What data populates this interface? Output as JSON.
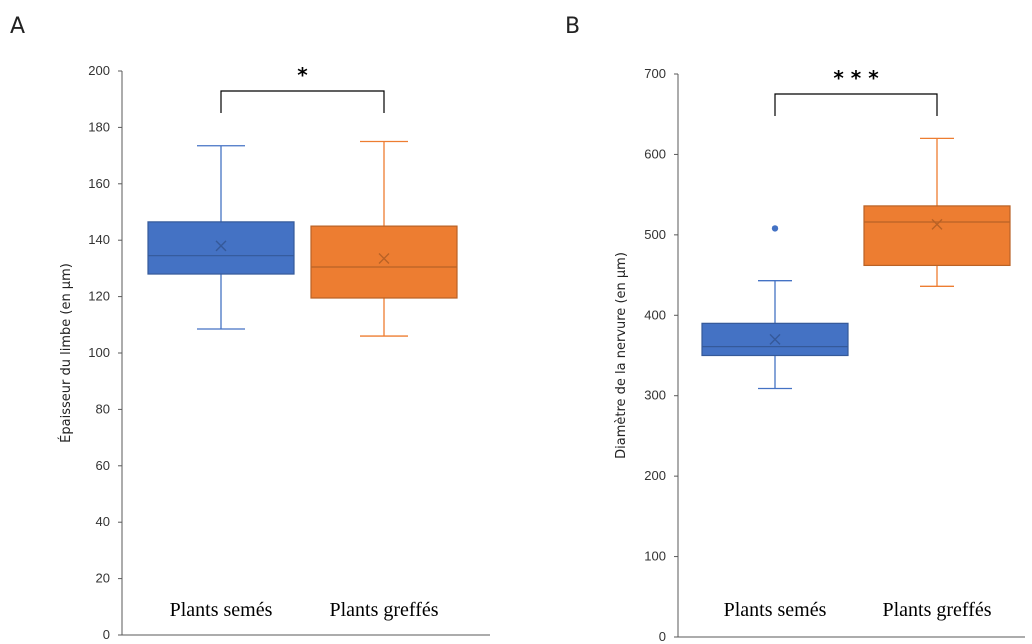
{
  "colors": {
    "blue": "#4472C4",
    "orange": "#ED7D31",
    "axis": "#595959"
  },
  "chart_data": [
    {
      "type": "box",
      "panel": "A",
      "ylabel": "Épaisseur du limbe (en µm)",
      "ylim": [
        0,
        200
      ],
      "yticks": [
        0,
        20,
        40,
        60,
        80,
        100,
        120,
        140,
        160,
        180,
        200
      ],
      "categories": [
        "Plants semés",
        "Plants greffés"
      ],
      "series": [
        {
          "category": "Plants semés",
          "color": "#4472C4",
          "whisker_low": 108.5,
          "q1": 128,
          "median": 134.5,
          "q3": 146.5,
          "whisker_high": 173.5,
          "mean": 138,
          "outliers": []
        },
        {
          "category": "Plants greffés",
          "color": "#ED7D31",
          "whisker_low": 106,
          "q1": 119.5,
          "median": 130.5,
          "q3": 145,
          "whisker_high": 175,
          "mean": 133.5,
          "outliers": []
        }
      ],
      "significance": "*"
    },
    {
      "type": "box",
      "panel": "B",
      "ylabel": "Diamètre de la nervure (en µm)",
      "ylim": [
        0,
        700
      ],
      "yticks": [
        0,
        100,
        200,
        300,
        400,
        500,
        600,
        700
      ],
      "categories": [
        "Plants semés",
        "Plants greffés"
      ],
      "series": [
        {
          "category": "Plants semés",
          "color": "#4472C4",
          "whisker_low": 309,
          "q1": 350,
          "median": 361,
          "q3": 390,
          "whisker_high": 443,
          "mean": 370,
          "outliers": [
            508
          ]
        },
        {
          "category": "Plants greffés",
          "color": "#ED7D31",
          "whisker_low": 436,
          "q1": 462,
          "median": 516,
          "q3": 536,
          "whisker_high": 620,
          "mean": 513,
          "outliers": []
        }
      ],
      "significance": "* * *"
    }
  ]
}
